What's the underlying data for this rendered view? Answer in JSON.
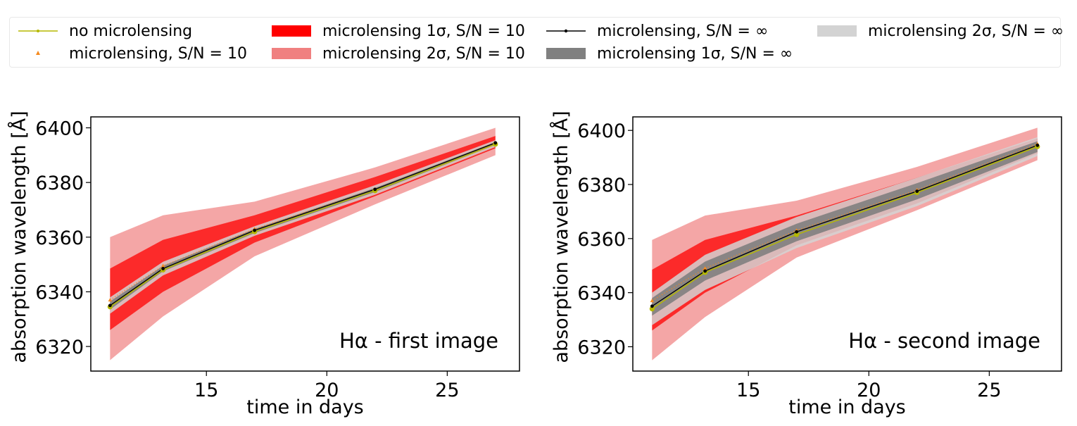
{
  "legend": {
    "no_ml": "no microlensing",
    "ml_sn10": "microlensing, S/N = 10",
    "ml1_sn10": "microlensing 1σ, S/N = 10",
    "ml2_sn10": "microlensing 2σ, S/N = 10",
    "ml_inf": "microlensing, S/N = ∞",
    "ml1_inf": "microlensing 1σ, S/N = ∞",
    "ml2_inf": "microlensing 2σ, S/N = ∞"
  },
  "colors": {
    "no_ml": "#b5b800",
    "ml_sn10": "#f58a1f",
    "ml1_sn10": "#ff0000",
    "ml2_sn10": "#f08080",
    "ml_inf": "#000000",
    "ml1_inf": "#808080",
    "ml2_inf": "#d3d3d3"
  },
  "chart_data": [
    {
      "type": "line",
      "annotation": "Hα - first image",
      "xlabel": "time in days",
      "ylabel": "absorption wavelength [Å]",
      "xlim": [
        10.2,
        28
      ],
      "ylim": [
        6311,
        6404
      ],
      "xticks": [
        15,
        20,
        25
      ],
      "yticks": [
        6320,
        6340,
        6360,
        6380,
        6400
      ],
      "x": [
        11,
        13.2,
        17,
        22,
        27
      ],
      "series": [
        {
          "name": "no microlensing",
          "values": [
            6334.5,
            6348,
            6362,
            6377,
            6394
          ]
        },
        {
          "name": "microlensing, S/N = 10",
          "values": [
            6337,
            6349.5,
            6363,
            6377.5,
            6394.5
          ]
        },
        {
          "name": "microlensing, S/N = ∞",
          "values": [
            6335,
            6348.5,
            6362.5,
            6377.5,
            6394.5
          ]
        }
      ],
      "bands": [
        {
          "name": "microlensing 2σ, S/N = 10",
          "lower": [
            6315,
            6331,
            6353,
            6372,
            6390
          ],
          "upper": [
            6360,
            6368,
            6373,
            6385.5,
            6400
          ]
        },
        {
          "name": "microlensing 1σ, S/N = 10",
          "lower": [
            6326,
            6340,
            6358,
            6375,
            6392.5
          ],
          "upper": [
            6348.5,
            6359,
            6368,
            6382,
            6397
          ]
        },
        {
          "name": "microlensing 2σ, S/N = ∞",
          "lower": [
            6332,
            6346,
            6360.5,
            6375.5,
            6393
          ],
          "upper": [
            6338,
            6351,
            6364,
            6379,
            6395.5
          ]
        },
        {
          "name": "microlensing 1σ, S/N = ∞",
          "lower": [
            6333.5,
            6347.5,
            6361.5,
            6376.5,
            6393.8
          ],
          "upper": [
            6336.5,
            6349.5,
            6363,
            6378,
            6394.8
          ]
        }
      ]
    },
    {
      "type": "line",
      "annotation": "Hα - second image",
      "xlabel": "time in days",
      "ylabel": "absorption wavelength [Å]",
      "xlim": [
        10.2,
        28
      ],
      "ylim": [
        6311,
        6405
      ],
      "xticks": [
        15,
        20,
        25
      ],
      "yticks": [
        6320,
        6340,
        6360,
        6380,
        6400
      ],
      "x": [
        11,
        13.2,
        17,
        22,
        27
      ],
      "series": [
        {
          "name": "no microlensing",
          "values": [
            6334,
            6347.5,
            6361.5,
            6377,
            6394
          ]
        },
        {
          "name": "microlensing, S/N = 10",
          "values": [
            6337,
            6349,
            6363,
            6378,
            6395
          ]
        },
        {
          "name": "microlensing, S/N = ∞",
          "values": [
            6335,
            6348,
            6362.5,
            6377.5,
            6394.5
          ]
        }
      ],
      "bands": [
        {
          "name": "microlensing 2σ, S/N = 10",
          "lower": [
            6315,
            6331,
            6353,
            6370.5,
            6389
          ],
          "upper": [
            6359.5,
            6368.5,
            6374,
            6386.5,
            6401
          ]
        },
        {
          "name": "microlensing 1σ, S/N = 10",
          "lower": [
            6326,
            6340,
            6357.5,
            6373,
            6391.5
          ],
          "upper": [
            6348.5,
            6359.5,
            6368.5,
            6382.5,
            6397
          ]
        },
        {
          "name": "microlensing 2σ, S/N = ∞",
          "lower": [
            6328,
            6341,
            6356.5,
            6372,
            6390.5
          ],
          "upper": [
            6340,
            6354,
            6368,
            6382.5,
            6397.5
          ]
        },
        {
          "name": "microlensing 1σ, S/N = ∞",
          "lower": [
            6331.5,
            6344.5,
            6359,
            6374.5,
            6392
          ],
          "upper": [
            6338,
            6351.5,
            6365.5,
            6380.5,
            6396
          ]
        }
      ]
    }
  ]
}
